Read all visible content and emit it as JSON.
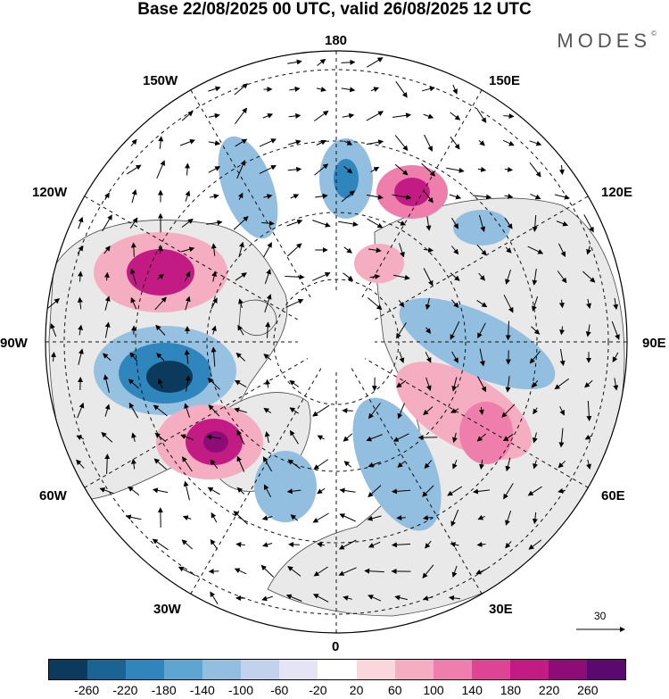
{
  "title": "Base 22/08/2025 00 UTC, valid 26/08/2025 12 UTC",
  "brand": "MODES",
  "brand_mark": "©",
  "longitude_labels": {
    "lon180": "180",
    "lon150e": "150E",
    "lon120e": "120E",
    "lon90e": "90E",
    "lon60e": "60E",
    "lon30e": "30E",
    "lon0": "0",
    "lon30w": "30W",
    "lon60w": "60W",
    "lon90w": "90W",
    "lon120w": "120W",
    "lon150w": "150W"
  },
  "vector_reference": {
    "label": "30"
  },
  "colorbar": {
    "colors": [
      "#0b3a5c",
      "#1a6494",
      "#2f86bd",
      "#5ea6d2",
      "#92bfe0",
      "#c3d2ec",
      "#e4e4f4",
      "#ffffff",
      "#fad6dd",
      "#f5adc2",
      "#ee7fac",
      "#dd4594",
      "#c21b84",
      "#8e0c76",
      "#5a0a6f"
    ],
    "labels": [
      "-260",
      "-220",
      "-180",
      "-140",
      "-100",
      "-60",
      "-20",
      "20",
      "60",
      "100",
      "140",
      "180",
      "220",
      "260"
    ]
  },
  "colors": {
    "land": "#e9e9e9",
    "neutral": "#ffffff",
    "grid": "#111111"
  }
}
